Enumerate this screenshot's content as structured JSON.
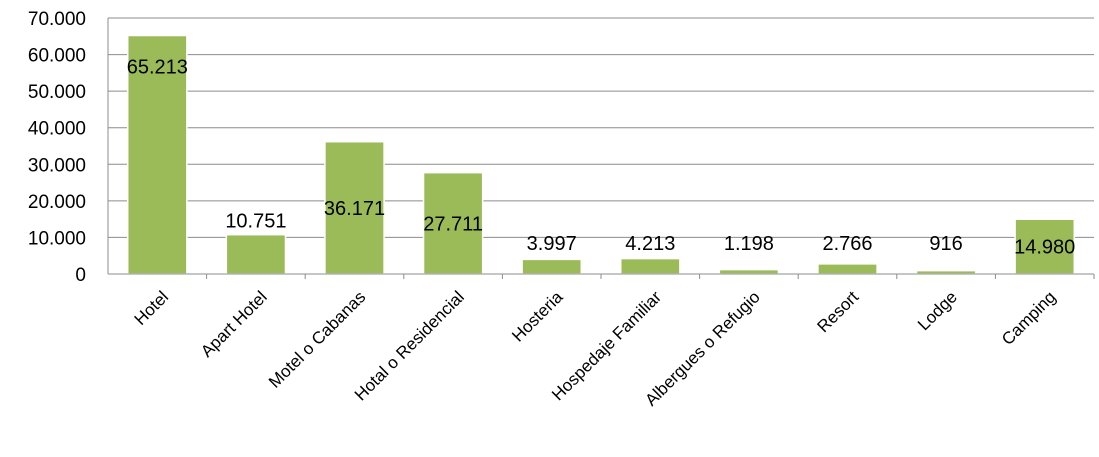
{
  "chart_data": {
    "type": "bar",
    "title": "",
    "xlabel": "",
    "ylabel": "",
    "categories": [
      "Hotel",
      "Apart Hotel",
      "Motel o Cabanas",
      "Hotal o Residencial",
      "Hosteria",
      "Hospedaje Familiar",
      "Albergues o Refugio",
      "Resort",
      "Lodge",
      "Camping"
    ],
    "values": [
      65213,
      10751,
      36171,
      27711,
      3997,
      4213,
      1198,
      2766,
      916,
      14980
    ],
    "value_labels": [
      "65.213",
      "10.751",
      "36.171",
      "27.711",
      "3.997",
      "4.213",
      "1.198",
      "2.766",
      "916",
      "14.980"
    ],
    "ylim": [
      0,
      70000
    ],
    "yticks": [
      0,
      10000,
      20000,
      30000,
      40000,
      50000,
      60000,
      70000
    ],
    "ytick_labels": [
      "0",
      "10.000",
      "20.000",
      "30.000",
      "40.000",
      "50.000",
      "60.000",
      "70.000"
    ],
    "grid": true,
    "legend": "none",
    "colors": {
      "bar": "#9BBB59",
      "bar_edge": "#ffffff",
      "grid": "#8c8c8c",
      "axis": "#8c8c8c"
    }
  }
}
